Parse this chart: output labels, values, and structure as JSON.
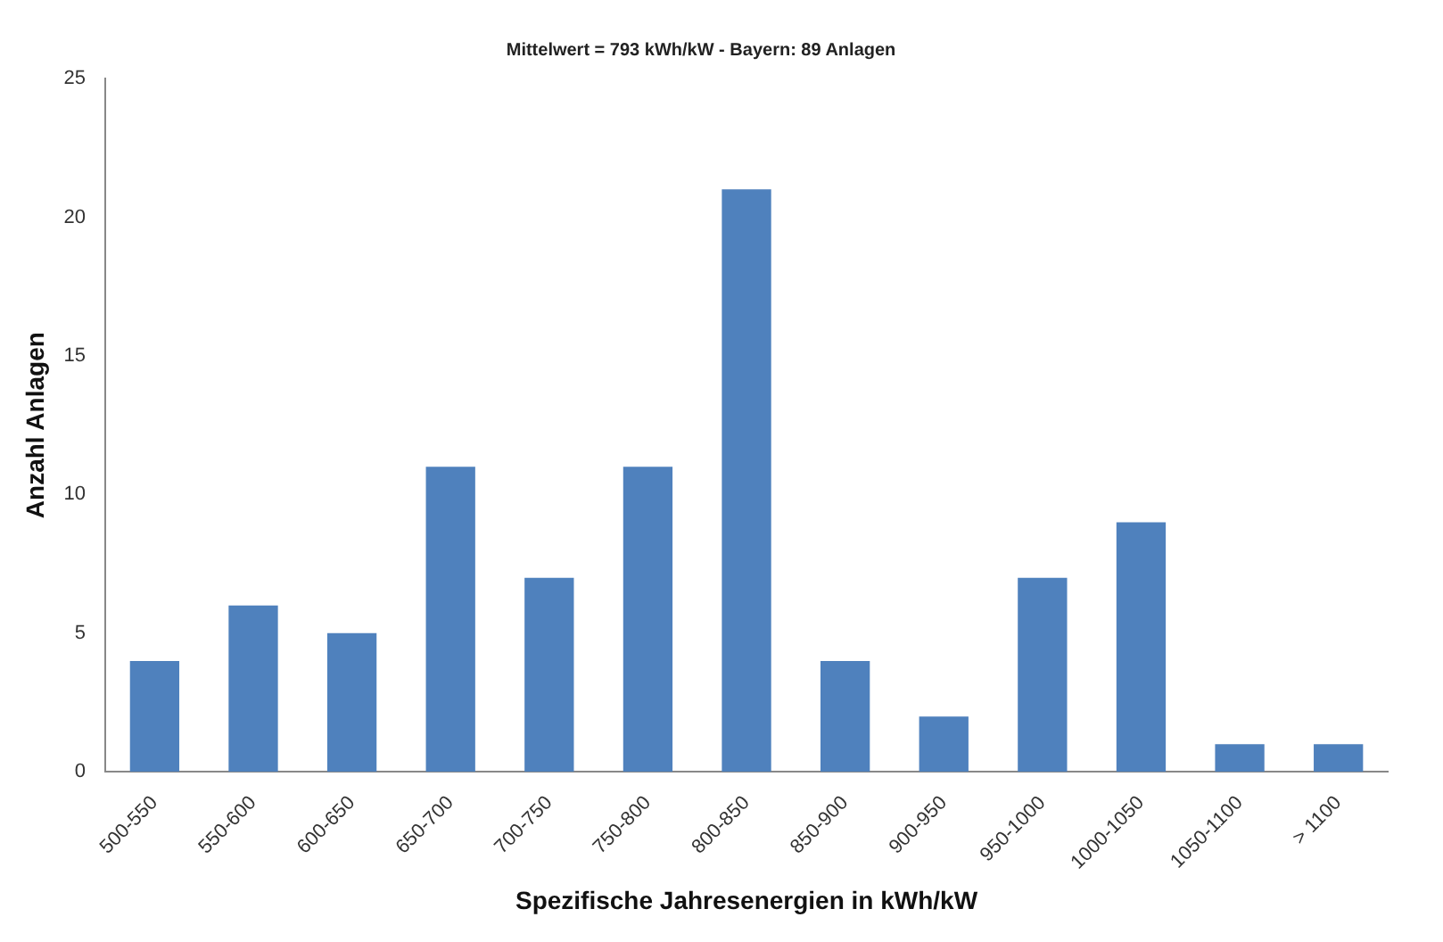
{
  "chart_data": {
    "type": "bar",
    "title": "Mittelwert = 793 kWh/kW - Bayern: 89 Anlagen",
    "xlabel": "Spezifische Jahresenergien in kWh/kW",
    "ylabel": "Anzahl Anlagen",
    "categories": [
      "500-550",
      "550-600",
      "600-650",
      "650-700",
      "700-750",
      "750-800",
      "800-850",
      "850-900",
      "900-950",
      "950-1000",
      "1000-1050",
      "1050-1100",
      "> 1100"
    ],
    "values": [
      4,
      6,
      5,
      11,
      7,
      11,
      21,
      4,
      2,
      7,
      9,
      1,
      1
    ],
    "color": "#4f81bd",
    "ylim": [
      0,
      25
    ],
    "yticks": [
      0,
      5,
      10,
      15,
      20,
      25
    ],
    "grid": false,
    "legend": false
  }
}
